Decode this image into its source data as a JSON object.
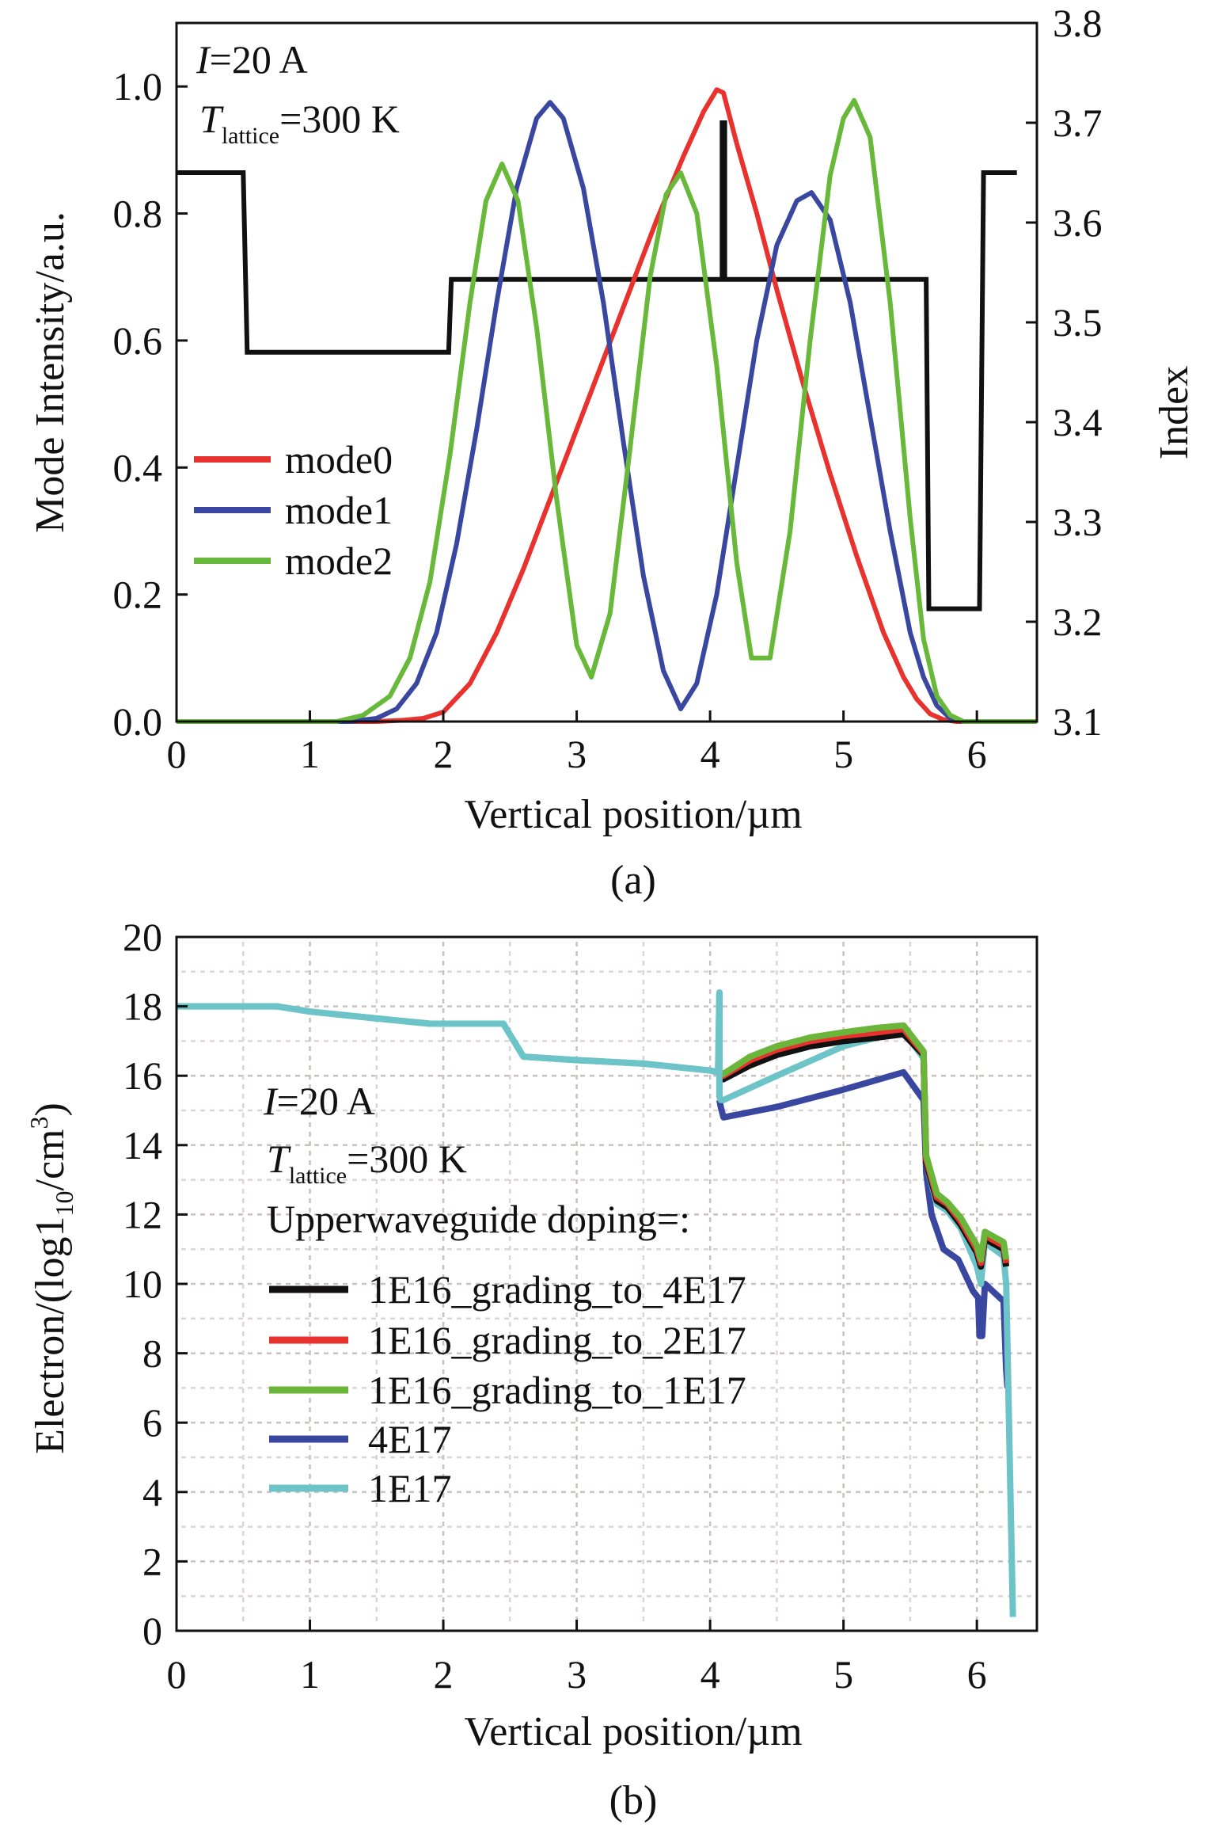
{
  "chart_data": [
    {
      "type": "line",
      "panel_caption": "(a)",
      "xlabel": "Vertical position/µm",
      "ylabel": "Mode Intensity/a.u.",
      "y2label": "Index",
      "xlim": [
        0,
        6.45
      ],
      "ylim": [
        0,
        1.1
      ],
      "y2lim": [
        3.1,
        3.8
      ],
      "xticks": [
        "0",
        "1",
        "2",
        "3",
        "4",
        "5",
        "6"
      ],
      "xtick_values": [
        0,
        1,
        2,
        3,
        4,
        5,
        6
      ],
      "yticks": [
        "0.0",
        "0.2",
        "0.4",
        "0.6",
        "0.8",
        "1.0"
      ],
      "ytick_values": [
        0,
        0.2,
        0.4,
        0.6,
        0.8,
        1.0
      ],
      "y2ticks": [
        "3.1",
        "3.2",
        "3.3",
        "3.4",
        "3.5",
        "3.6",
        "3.7",
        "3.8"
      ],
      "y2tick_values": [
        3.1,
        3.2,
        3.3,
        3.4,
        3.5,
        3.6,
        3.7,
        3.8
      ],
      "grid": false,
      "legend_position": "center-left",
      "annotations": {
        "current": {
          "italic": "I",
          "rest": "=20 A"
        },
        "temperature": {
          "italic": "T",
          "sub": "lattice",
          "rest": "=300 K"
        }
      },
      "series": [
        {
          "name": "mode0",
          "color": "#e8322e",
          "axis": "left",
          "x": [
            0,
            1.5,
            1.7,
            1.85,
            2.0,
            2.2,
            2.4,
            2.6,
            2.8,
            3.0,
            3.2,
            3.4,
            3.6,
            3.8,
            3.95,
            4.05,
            4.1,
            4.2,
            4.35,
            4.5,
            4.7,
            4.9,
            5.1,
            5.3,
            5.45,
            5.55,
            5.65,
            5.75,
            5.85,
            6.45
          ],
          "values": [
            0,
            0,
            0.002,
            0.005,
            0.015,
            0.06,
            0.14,
            0.24,
            0.35,
            0.46,
            0.57,
            0.68,
            0.79,
            0.89,
            0.96,
            0.995,
            0.99,
            0.91,
            0.8,
            0.68,
            0.53,
            0.39,
            0.26,
            0.14,
            0.07,
            0.035,
            0.012,
            0.003,
            0,
            0
          ]
        },
        {
          "name": "mode1",
          "color": "#3a47a0",
          "axis": "left",
          "x": [
            0,
            1.3,
            1.5,
            1.65,
            1.8,
            1.95,
            2.1,
            2.25,
            2.4,
            2.55,
            2.7,
            2.8,
            2.9,
            3.05,
            3.2,
            3.35,
            3.5,
            3.65,
            3.78,
            3.9,
            4.05,
            4.2,
            4.35,
            4.5,
            4.65,
            4.76,
            4.9,
            5.05,
            5.2,
            5.35,
            5.5,
            5.6,
            5.7,
            5.8,
            5.9,
            6.45
          ],
          "values": [
            0,
            0,
            0.005,
            0.02,
            0.06,
            0.14,
            0.28,
            0.46,
            0.66,
            0.84,
            0.95,
            0.975,
            0.95,
            0.84,
            0.66,
            0.44,
            0.23,
            0.08,
            0.02,
            0.06,
            0.2,
            0.4,
            0.6,
            0.75,
            0.82,
            0.833,
            0.79,
            0.66,
            0.48,
            0.3,
            0.14,
            0.07,
            0.025,
            0.005,
            0,
            0
          ]
        },
        {
          "name": "mode2",
          "color": "#68b83a",
          "axis": "left",
          "x": [
            0,
            1.2,
            1.4,
            1.6,
            1.75,
            1.9,
            2.05,
            2.2,
            2.32,
            2.44,
            2.56,
            2.7,
            2.85,
            3.0,
            3.11,
            3.25,
            3.4,
            3.55,
            3.67,
            3.78,
            3.9,
            4.05,
            4.2,
            4.31,
            4.45,
            4.6,
            4.75,
            4.9,
            5.0,
            5.08,
            5.2,
            5.35,
            5.5,
            5.6,
            5.7,
            5.8,
            5.9,
            6.45
          ],
          "values": [
            0,
            0,
            0.01,
            0.04,
            0.1,
            0.22,
            0.42,
            0.66,
            0.82,
            0.878,
            0.82,
            0.62,
            0.35,
            0.12,
            0.07,
            0.17,
            0.43,
            0.7,
            0.83,
            0.864,
            0.8,
            0.56,
            0.25,
            0.1,
            0.1,
            0.3,
            0.6,
            0.86,
            0.95,
            0.978,
            0.92,
            0.66,
            0.32,
            0.13,
            0.04,
            0.01,
            0,
            0
          ]
        },
        {
          "name": "index",
          "color": "#111111",
          "axis": "right",
          "x": [
            0,
            0.5,
            0.53,
            2.04,
            2.06,
            4.09,
            4.09,
            4.11,
            4.11,
            5.62,
            5.64,
            6.02,
            6.05,
            6.3
          ],
          "values": [
            3.65,
            3.65,
            3.47,
            3.47,
            3.543,
            3.543,
            3.7,
            3.7,
            3.543,
            3.543,
            3.213,
            3.213,
            3.65,
            3.65
          ]
        }
      ]
    },
    {
      "type": "line",
      "panel_caption": "(b)",
      "xlabel": "Vertical position/µm",
      "ylabel": {
        "main": "Electron/(log1",
        "sub": "10",
        "mid": "/cm",
        "sup": "3",
        "end": ")"
      },
      "xlim": [
        0,
        6.45
      ],
      "ylim": [
        0,
        20
      ],
      "xticks": [
        "0",
        "1",
        "2",
        "3",
        "4",
        "5",
        "6"
      ],
      "xtick_values": [
        0,
        1,
        2,
        3,
        4,
        5,
        6
      ],
      "yticks": [
        "0",
        "2",
        "4",
        "6",
        "8",
        "10",
        "12",
        "14",
        "16",
        "18",
        "20"
      ],
      "ytick_values": [
        0,
        2,
        4,
        6,
        8,
        10,
        12,
        14,
        16,
        18,
        20
      ],
      "grid": true,
      "legend_position": "center-left",
      "annotations": {
        "current": {
          "italic": "I",
          "rest": "=20 A"
        },
        "temperature": {
          "italic": "T",
          "sub": "lattice",
          "rest": "=300 K"
        },
        "legend_title": "Upperwaveguide doping=:"
      },
      "series": [
        {
          "name": "1E16_grading_to_4E17",
          "color": "#111111",
          "x": [
            4.08,
            4.1,
            4.3,
            4.5,
            4.75,
            5.0,
            5.25,
            5.45,
            5.6,
            5.62,
            5.7,
            5.78,
            5.88,
            6.0,
            6.03,
            6.06,
            6.2,
            6.22
          ],
          "values": [
            16.1,
            15.9,
            16.3,
            16.6,
            16.85,
            17.0,
            17.1,
            17.2,
            16.6,
            13.5,
            12.4,
            12.2,
            11.7,
            10.9,
            10.5,
            11.3,
            11.0,
            10.5
          ]
        },
        {
          "name": "1E16_grading_to_2E17",
          "color": "#e8322e",
          "x": [
            4.08,
            4.1,
            4.3,
            4.5,
            4.75,
            5.0,
            5.25,
            5.45,
            5.6,
            5.62,
            5.7,
            5.78,
            5.88,
            6.0,
            6.03,
            6.06,
            6.2,
            6.22
          ],
          "values": [
            16.1,
            16.0,
            16.45,
            16.75,
            17.0,
            17.15,
            17.25,
            17.35,
            16.65,
            13.6,
            12.5,
            12.3,
            11.8,
            11.0,
            10.6,
            11.4,
            11.1,
            10.6
          ]
        },
        {
          "name": "1E16_grading_to_1E17",
          "color": "#6ab53a",
          "x": [
            4.08,
            4.1,
            4.3,
            4.5,
            4.75,
            5.0,
            5.25,
            5.45,
            5.6,
            5.62,
            5.7,
            5.78,
            5.88,
            6.0,
            6.03,
            6.06,
            6.2,
            6.22
          ],
          "values": [
            16.1,
            16.05,
            16.55,
            16.85,
            17.1,
            17.25,
            17.38,
            17.45,
            16.7,
            13.7,
            12.6,
            12.35,
            11.9,
            11.1,
            10.7,
            11.5,
            11.2,
            10.7
          ]
        },
        {
          "name": "4E17",
          "color": "#3a47a0",
          "x": [
            4.07,
            4.08,
            4.1,
            4.5,
            5.0,
            5.45,
            5.6,
            5.62,
            5.66,
            5.75,
            5.86,
            5.97,
            6.01,
            6.02,
            6.04,
            6.06,
            6.2,
            6.22,
            6.23
          ],
          "values": [
            15.3,
            15.1,
            14.8,
            15.1,
            15.6,
            16.1,
            15.3,
            13.2,
            12.0,
            11.0,
            10.7,
            9.8,
            9.6,
            8.5,
            8.5,
            10.0,
            9.5,
            7.5,
            7.0
          ]
        },
        {
          "name": "1E17",
          "color": "#6cc4c8",
          "x": [
            0,
            0.5,
            0.75,
            1.0,
            1.5,
            1.9,
            2.0,
            2.45,
            2.6,
            3.0,
            3.5,
            4.0,
            4.06,
            4.07,
            4.07,
            4.08,
            4.1,
            4.5,
            5.0,
            5.45,
            5.6,
            5.62,
            5.7,
            5.78,
            5.88,
            6.0,
            6.03,
            6.06,
            6.2,
            6.22,
            6.27
          ],
          "values": [
            18.0,
            18.0,
            18.0,
            17.85,
            17.65,
            17.5,
            17.5,
            17.5,
            16.55,
            16.45,
            16.35,
            16.15,
            16.1,
            18.4,
            15.4,
            15.3,
            15.3,
            16.0,
            16.85,
            17.3,
            16.5,
            13.5,
            12.3,
            12.1,
            11.6,
            10.5,
            10.0,
            11.2,
            10.8,
            10.0,
            0.4
          ]
        }
      ]
    }
  ]
}
